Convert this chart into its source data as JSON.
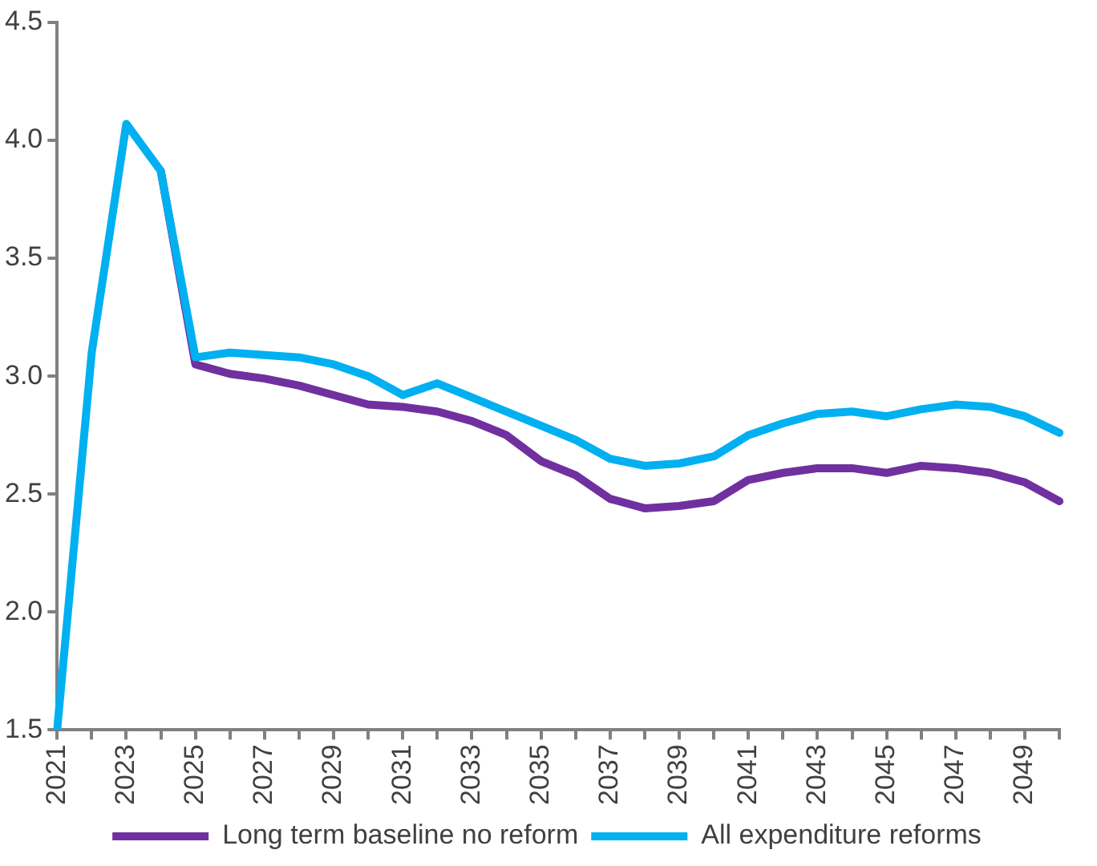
{
  "chart_data": {
    "type": "line",
    "categories": [
      "2021",
      null,
      "2023",
      null,
      "2025",
      null,
      "2027",
      null,
      "2029",
      null,
      "2031",
      null,
      "2033",
      null,
      "2035",
      null,
      "2037",
      null,
      "2039",
      null,
      "2041",
      null,
      "2043",
      null,
      "2045",
      null,
      "2047",
      null,
      "2049",
      null
    ],
    "series": [
      {
        "name": "Long term baseline no reform",
        "color": "#7030a0",
        "values": [
          null,
          null,
          null,
          3.87,
          3.05,
          3.01,
          2.99,
          2.96,
          2.92,
          2.88,
          2.87,
          2.85,
          2.81,
          2.75,
          2.64,
          2.58,
          2.48,
          2.44,
          2.45,
          2.47,
          2.56,
          2.59,
          2.61,
          2.61,
          2.59,
          2.62,
          2.61,
          2.59,
          2.55,
          2.47
        ]
      },
      {
        "name": "All expenditure reforms",
        "color": "#00b0f0",
        "values": [
          1.5,
          3.1,
          4.07,
          3.87,
          3.08,
          3.1,
          3.09,
          3.08,
          3.05,
          3.0,
          2.92,
          2.97,
          2.91,
          2.85,
          2.79,
          2.73,
          2.65,
          2.62,
          2.63,
          2.66,
          2.75,
          2.8,
          2.84,
          2.85,
          2.83,
          2.86,
          2.88,
          2.87,
          2.83,
          2.76
        ]
      }
    ],
    "ylim": [
      1.5,
      4.5
    ],
    "yticks": [
      1.5,
      {
        "value": 2,
        "label": "2.0"
      },
      2.5,
      {
        "value": 3,
        "label": "3.0"
      },
      3.5,
      {
        "value": 4,
        "label": "4.0"
      },
      4.5
    ],
    "grid": false,
    "legend": "bottom",
    "marker": "none",
    "line_style": "solid"
  }
}
